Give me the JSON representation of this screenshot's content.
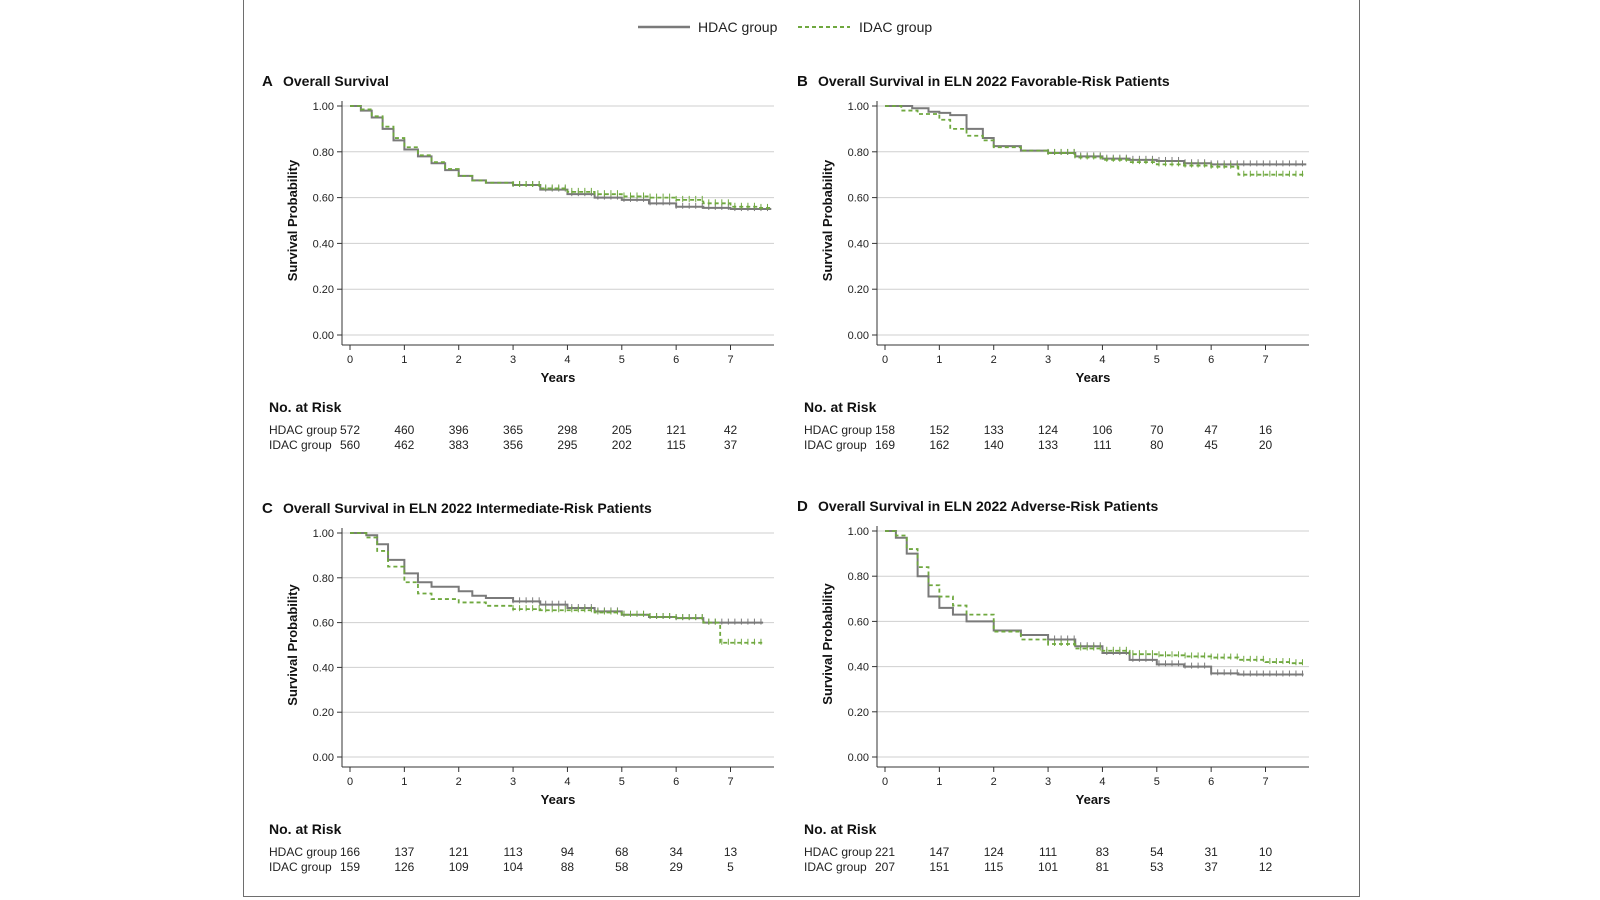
{
  "legend": {
    "hdac_label": "HDAC group",
    "idac_label": "IDAC group",
    "hdac_color": "#7a7a7a",
    "idac_color": "#6fa83f"
  },
  "chart_data": [
    {
      "type": "line",
      "letter": "A",
      "title": "Overall Survival",
      "xlabel": "Years",
      "ylabel": "Survival Probability",
      "xlim": [
        0,
        7.8
      ],
      "ylim": [
        0,
        1
      ],
      "xticks": [
        "0",
        "1",
        "2",
        "3",
        "4",
        "5",
        "6",
        "7"
      ],
      "yticks": [
        "0.00",
        "0.20",
        "0.40",
        "0.60",
        "0.80",
        "1.00"
      ],
      "grid": "horizontal",
      "series": [
        {
          "name": "HDAC group",
          "style": "solid",
          "x": [
            0,
            0.2,
            0.4,
            0.6,
            0.8,
            1,
            1.25,
            1.5,
            1.75,
            2,
            2.25,
            2.5,
            3,
            3.5,
            4,
            4.5,
            5,
            5.5,
            6,
            6.5,
            7,
            7.5,
            7.75
          ],
          "y": [
            1,
            0.98,
            0.95,
            0.9,
            0.85,
            0.81,
            0.78,
            0.75,
            0.72,
            0.695,
            0.675,
            0.665,
            0.655,
            0.635,
            0.615,
            0.6,
            0.59,
            0.575,
            0.56,
            0.555,
            0.55,
            0.55,
            0.55
          ]
        },
        {
          "name": "IDAC group",
          "style": "dashed",
          "x": [
            0,
            0.2,
            0.4,
            0.6,
            0.8,
            1,
            1.25,
            1.5,
            1.75,
            2,
            2.25,
            2.5,
            3,
            3.5,
            4,
            4.5,
            5,
            5.5,
            6,
            6.5,
            7,
            7.5,
            7.75
          ],
          "y": [
            1,
            0.985,
            0.955,
            0.91,
            0.86,
            0.82,
            0.785,
            0.755,
            0.725,
            0.695,
            0.675,
            0.665,
            0.655,
            0.64,
            0.625,
            0.615,
            0.605,
            0.6,
            0.59,
            0.575,
            0.56,
            0.555,
            0.555
          ]
        }
      ],
      "risk": {
        "heading": "No. at Risk",
        "rows": [
          {
            "label": "HDAC group",
            "values": [
              "572",
              "460",
              "396",
              "365",
              "298",
              "205",
              "121",
              "42"
            ]
          },
          {
            "label": "IDAC group",
            "values": [
              "560",
              "462",
              "383",
              "356",
              "295",
              "202",
              "115",
              "37"
            ]
          }
        ]
      }
    },
    {
      "type": "line",
      "letter": "B",
      "title": "Overall Survival in ELN 2022 Favorable-Risk Patients",
      "xlabel": "Years",
      "ylabel": "Survival Probability",
      "xlim": [
        0,
        7.8
      ],
      "ylim": [
        0,
        1
      ],
      "xticks": [
        "0",
        "1",
        "2",
        "3",
        "4",
        "5",
        "6",
        "7"
      ],
      "yticks": [
        "0.00",
        "0.20",
        "0.40",
        "0.60",
        "0.80",
        "1.00"
      ],
      "grid": "horizontal",
      "series": [
        {
          "name": "HDAC group",
          "style": "solid",
          "x": [
            0,
            0.5,
            0.8,
            1,
            1.2,
            1.5,
            1.8,
            2,
            2.5,
            3,
            3.5,
            4,
            4.5,
            5,
            5.5,
            6,
            6.5,
            7,
            7.5,
            7.75
          ],
          "y": [
            1,
            0.99,
            0.975,
            0.97,
            0.96,
            0.9,
            0.86,
            0.825,
            0.805,
            0.795,
            0.78,
            0.77,
            0.765,
            0.76,
            0.75,
            0.745,
            0.745,
            0.745,
            0.745,
            0.745
          ]
        },
        {
          "name": "IDAC group",
          "style": "dashed",
          "x": [
            0,
            0.3,
            0.6,
            1,
            1.2,
            1.5,
            1.8,
            2,
            2.5,
            3,
            3.5,
            4,
            4.5,
            5,
            5.5,
            6,
            6.3,
            6.5,
            7,
            7.5,
            7.75
          ],
          "y": [
            1,
            0.98,
            0.965,
            0.94,
            0.9,
            0.87,
            0.85,
            0.82,
            0.805,
            0.795,
            0.775,
            0.765,
            0.755,
            0.745,
            0.74,
            0.735,
            0.735,
            0.7,
            0.7,
            0.7,
            0.7
          ]
        }
      ],
      "risk": {
        "heading": "No. at Risk",
        "rows": [
          {
            "label": "HDAC group",
            "values": [
              "158",
              "152",
              "133",
              "124",
              "106",
              "70",
              "47",
              "16"
            ]
          },
          {
            "label": "IDAC group",
            "values": [
              "169",
              "162",
              "140",
              "133",
              "111",
              "80",
              "45",
              "20"
            ]
          }
        ]
      }
    },
    {
      "type": "line",
      "letter": "C",
      "title": "Overall Survival in ELN 2022 Intermediate-Risk Patients",
      "xlabel": "Years",
      "ylabel": "Survival Probability",
      "xlim": [
        0,
        7.8
      ],
      "ylim": [
        0,
        1
      ],
      "xticks": [
        "0",
        "1",
        "2",
        "3",
        "4",
        "5",
        "6",
        "7"
      ],
      "yticks": [
        "0.00",
        "0.20",
        "0.40",
        "0.60",
        "0.80",
        "1.00"
      ],
      "grid": "horizontal",
      "series": [
        {
          "name": "HDAC group",
          "style": "solid",
          "x": [
            0,
            0.3,
            0.5,
            0.7,
            1,
            1.25,
            1.5,
            2,
            2.25,
            2.5,
            3,
            3.5,
            4,
            4.5,
            5,
            5.5,
            6,
            6.5,
            7,
            7.5,
            7.6
          ],
          "y": [
            1,
            0.99,
            0.95,
            0.88,
            0.82,
            0.78,
            0.76,
            0.74,
            0.72,
            0.71,
            0.695,
            0.68,
            0.665,
            0.65,
            0.635,
            0.625,
            0.62,
            0.6,
            0.6,
            0.6,
            0.6
          ]
        },
        {
          "name": "IDAC group",
          "style": "dashed",
          "x": [
            0,
            0.3,
            0.5,
            0.7,
            1,
            1.25,
            1.5,
            2,
            2.5,
            3,
            3.5,
            4,
            4.5,
            5,
            5.5,
            6,
            6.5,
            6.8,
            6.81,
            7,
            7.5,
            7.6
          ],
          "y": [
            1,
            0.98,
            0.92,
            0.85,
            0.78,
            0.73,
            0.705,
            0.69,
            0.675,
            0.66,
            0.655,
            0.655,
            0.645,
            0.635,
            0.625,
            0.62,
            0.6,
            0.6,
            0.51,
            0.51,
            0.51,
            0.51
          ]
        }
      ],
      "risk": {
        "heading": "No. at Risk",
        "rows": [
          {
            "label": "HDAC group",
            "values": [
              "166",
              "137",
              "121",
              "113",
              "94",
              "68",
              "34",
              "13"
            ]
          },
          {
            "label": "IDAC group",
            "values": [
              "159",
              "126",
              "109",
              "104",
              "88",
              "58",
              "29",
              "5"
            ]
          }
        ]
      }
    },
    {
      "type": "line",
      "letter": "D",
      "title": "Overall Survival in ELN 2022 Adverse-Risk Patients",
      "xlabel": "Years",
      "ylabel": "Survival Probability",
      "xlim": [
        0,
        7.8
      ],
      "ylim": [
        0,
        1
      ],
      "xticks": [
        "0",
        "1",
        "2",
        "3",
        "4",
        "5",
        "6",
        "7"
      ],
      "yticks": [
        "0.00",
        "0.20",
        "0.40",
        "0.60",
        "0.80",
        "1.00"
      ],
      "grid": "horizontal",
      "series": [
        {
          "name": "HDAC group",
          "style": "solid",
          "x": [
            0,
            0.2,
            0.4,
            0.6,
            0.8,
            1,
            1.25,
            1.5,
            2,
            2.5,
            3,
            3.5,
            4,
            4.5,
            5,
            5.5,
            6,
            6.5,
            7,
            7.5,
            7.7
          ],
          "y": [
            1,
            0.97,
            0.9,
            0.8,
            0.71,
            0.66,
            0.63,
            0.6,
            0.56,
            0.54,
            0.52,
            0.49,
            0.46,
            0.43,
            0.41,
            0.4,
            0.37,
            0.365,
            0.365,
            0.365,
            0.365
          ]
        },
        {
          "name": "IDAC group",
          "style": "dashed",
          "x": [
            0,
            0.2,
            0.4,
            0.6,
            0.8,
            1,
            1.25,
            1.5,
            2,
            2.5,
            3,
            3.5,
            4,
            4.5,
            5,
            5.5,
            6,
            6.5,
            7,
            7.5,
            7.7
          ],
          "y": [
            1,
            0.98,
            0.92,
            0.84,
            0.76,
            0.71,
            0.67,
            0.63,
            0.555,
            0.52,
            0.5,
            0.48,
            0.47,
            0.455,
            0.45,
            0.445,
            0.44,
            0.43,
            0.42,
            0.415,
            0.415
          ]
        }
      ],
      "risk": {
        "heading": "No. at Risk",
        "rows": [
          {
            "label": "HDAC group",
            "values": [
              "221",
              "147",
              "124",
              "111",
              "83",
              "54",
              "31",
              "10"
            ]
          },
          {
            "label": "IDAC group",
            "values": [
              "207",
              "151",
              "115",
              "101",
              "81",
              "53",
              "37",
              "12"
            ]
          }
        ]
      }
    }
  ]
}
